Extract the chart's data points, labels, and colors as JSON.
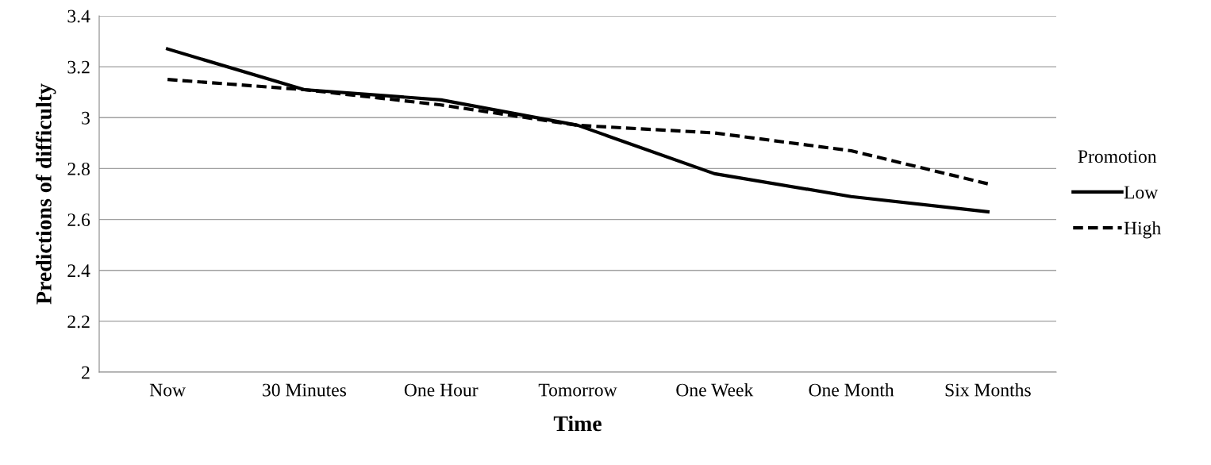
{
  "chart_data": {
    "type": "line",
    "xlabel": "Time",
    "ylabel": "Predictions of difficulty",
    "legend_title": "Promotion",
    "legend": "right",
    "grid": "y",
    "marker": "none",
    "categories": [
      "Now",
      "30 Minutes",
      "One Hour",
      "Tomorrow",
      "One Week",
      "One Month",
      "Six Months"
    ],
    "ylim": [
      2,
      3.4
    ],
    "yticks": [
      2,
      2.2,
      2.4,
      2.6,
      2.8,
      3,
      3.2,
      3.4
    ],
    "series": [
      {
        "name": "Low",
        "color": "#000000",
        "line_style": "solid",
        "values": [
          3.27,
          3.11,
          3.07,
          2.97,
          2.78,
          2.69,
          2.63
        ]
      },
      {
        "name": "High",
        "color": "#000000",
        "line_style": "dashed",
        "values": [
          3.15,
          3.11,
          3.05,
          2.97,
          2.94,
          2.87,
          2.74
        ]
      }
    ]
  }
}
